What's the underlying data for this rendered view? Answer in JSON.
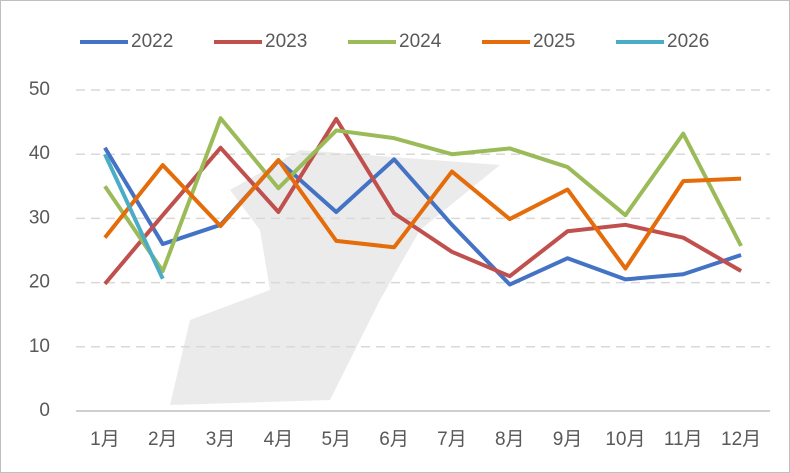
{
  "chart_data": {
    "type": "line",
    "categories": [
      "1月",
      "2月",
      "3月",
      "4月",
      "5月",
      "6月",
      "7月",
      "8月",
      "9月",
      "10月",
      "11月",
      "12月"
    ],
    "series": [
      {
        "name": "2022",
        "color": "#4472c4",
        "values": [
          41,
          26,
          29,
          39,
          31,
          39.2,
          29,
          19.7,
          23.8,
          20.5,
          21.3,
          24.3
        ]
      },
      {
        "name": "2023",
        "color": "#c0504d",
        "values": [
          19.8,
          30.5,
          41,
          31,
          45.5,
          30.8,
          24.8,
          21,
          28,
          29,
          27,
          21.8
        ]
      },
      {
        "name": "2024",
        "color": "#9bbb59",
        "values": [
          35,
          21.8,
          45.6,
          34.7,
          43.7,
          42.5,
          40,
          40.9,
          38,
          30.5,
          43.2,
          25.7
        ]
      },
      {
        "name": "2025",
        "color": "#e46c0a",
        "values": [
          27,
          38.3,
          28.8,
          39.1,
          26.5,
          25.5,
          37.3,
          29.9,
          34.5,
          22.2,
          35.8,
          36.2
        ]
      },
      {
        "name": "2026",
        "color": "#4bacc6",
        "values": [
          40,
          20.6,
          null,
          null,
          null,
          null,
          null,
          null,
          null,
          null,
          null,
          null
        ]
      }
    ],
    "ylim": [
      0,
      50
    ],
    "yticks": [
      0,
      10,
      20,
      30,
      40,
      50
    ],
    "grid": true,
    "legend": "top"
  }
}
